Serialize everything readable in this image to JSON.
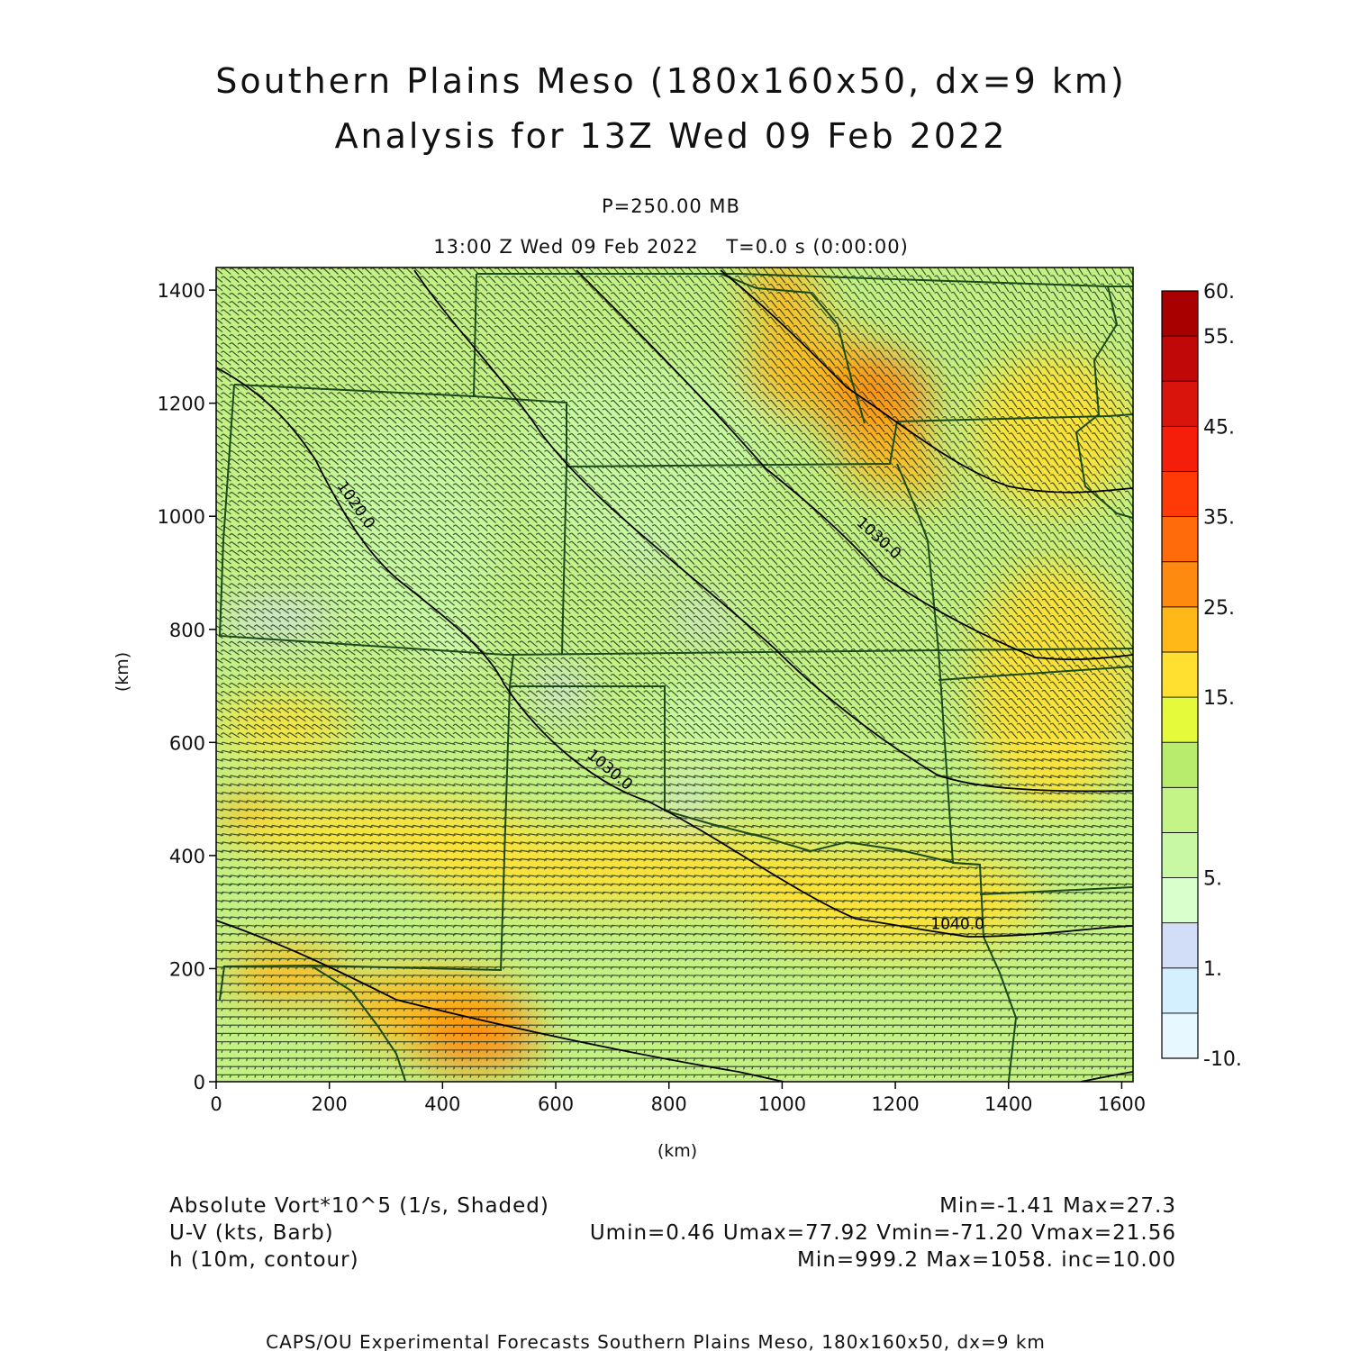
{
  "title": {
    "line1": "Southern Plains Meso (180x160x50, dx=9 km)",
    "line2": "Analysis for 13Z Wed 09 Feb 2022"
  },
  "subtitle": {
    "level": "P=250.00 MB",
    "time": "13:00 Z Wed 09 Feb 2022    T=0.0 s (0:00:00)"
  },
  "chart_data": {
    "type": "heatmap",
    "xlabel": "(km)",
    "ylabel": "(km)",
    "xlim": [
      0,
      1620
    ],
    "ylim": [
      0,
      1440
    ],
    "x_ticks": [
      0,
      200,
      400,
      600,
      800,
      1000,
      1200,
      1400,
      1600
    ],
    "y_ticks": [
      0,
      200,
      400,
      600,
      800,
      1000,
      1200,
      1400
    ],
    "colorbar": {
      "levels": [
        -10,
        -5,
        1,
        3,
        5,
        7.5,
        10,
        12.5,
        15,
        20,
        25,
        30,
        35,
        40,
        45,
        50,
        55,
        60
      ],
      "labels": [
        "-10.",
        "1.",
        "5.",
        "15.",
        "25.",
        "35.",
        "45.",
        "55.",
        "60."
      ],
      "label_levels": [
        -10,
        1,
        5,
        15,
        25,
        35,
        45,
        55,
        60
      ],
      "colors": [
        "#e8f8ff",
        "#d4f0ff",
        "#d2def8",
        "#d8ffcc",
        "#c8f8a4",
        "#c4f488",
        "#b8ec6c",
        "#e6fa3c",
        "#ffe030",
        "#ffb818",
        "#ff8a10",
        "#ff6a0a",
        "#ff3a06",
        "#f41e0a",
        "#d8140c",
        "#c00808",
        "#a80000"
      ]
    },
    "contour_labels": [
      {
        "text": "1020.0",
        "x": 240,
        "y": 1015,
        "angle": 55
      },
      {
        "text": "1030.0",
        "x": 1165,
        "y": 955,
        "angle": 42
      },
      {
        "text": "1030.0",
        "x": 690,
        "y": 545,
        "angle": 40
      },
      {
        "text": "1040.0",
        "x": 1310,
        "y": 270,
        "angle": 0
      }
    ],
    "blobs": [
      {
        "x": 1000,
        "y": 1390,
        "rx": 60,
        "ry": 70,
        "v": 22
      },
      {
        "x": 1050,
        "y": 1260,
        "rx": 110,
        "ry": 80,
        "v": 22
      },
      {
        "x": 1170,
        "y": 1200,
        "rx": 90,
        "ry": 90,
        "v": 26
      },
      {
        "x": 1180,
        "y": 1110,
        "rx": 70,
        "ry": 60,
        "v": 24
      },
      {
        "x": 1250,
        "y": 1070,
        "rx": 40,
        "ry": 40,
        "v": 20
      },
      {
        "x": 60,
        "y": 470,
        "rx": 60,
        "ry": 40,
        "v": 24
      },
      {
        "x": 300,
        "y": 440,
        "rx": 260,
        "ry": 60,
        "v": 17
      },
      {
        "x": 720,
        "y": 380,
        "rx": 380,
        "ry": 70,
        "v": 17
      },
      {
        "x": 1200,
        "y": 320,
        "rx": 260,
        "ry": 90,
        "v": 16
      },
      {
        "x": 1480,
        "y": 700,
        "rx": 140,
        "ry": 220,
        "v": 16
      },
      {
        "x": 1480,
        "y": 1150,
        "rx": 140,
        "ry": 140,
        "v": 16
      },
      {
        "x": 130,
        "y": 190,
        "rx": 110,
        "ry": 50,
        "v": 24
      },
      {
        "x": 380,
        "y": 130,
        "rx": 160,
        "ry": 70,
        "v": 24
      },
      {
        "x": 460,
        "y": 80,
        "rx": 110,
        "ry": 60,
        "v": 26
      },
      {
        "x": 900,
        "y": 580,
        "rx": 120,
        "ry": 25,
        "v": 16
      },
      {
        "x": 120,
        "y": 630,
        "rx": 120,
        "ry": 50,
        "v": 15
      },
      {
        "x": 110,
        "y": 820,
        "rx": 100,
        "ry": 28,
        "v": 2
      },
      {
        "x": 420,
        "y": 770,
        "rx": 50,
        "ry": 30,
        "v": 4
      },
      {
        "x": 610,
        "y": 690,
        "rx": 40,
        "ry": 35,
        "v": 2
      },
      {
        "x": 760,
        "y": 940,
        "rx": 40,
        "ry": 30,
        "v": 2
      },
      {
        "x": 860,
        "y": 820,
        "rx": 50,
        "ry": 25,
        "v": 2
      },
      {
        "x": 830,
        "y": 500,
        "rx": 40,
        "ry": 25,
        "v": 2
      },
      {
        "x": 750,
        "y": 1100,
        "rx": 220,
        "ry": 170,
        "v": 7
      },
      {
        "x": 340,
        "y": 980,
        "rx": 160,
        "ry": 200,
        "v": 7
      },
      {
        "x": 900,
        "y": 640,
        "rx": 130,
        "ry": 90,
        "v": 7
      }
    ]
  },
  "legend": {
    "field1": "Absolute Vort*10^5 (1/s, Shaded)",
    "field1_stats": "Min=-1.41 Max=27.3",
    "field2": "U-V (kts, Barb)",
    "field2_stats": "Umin=0.46 Umax=77.92 Vmin=-71.20 Vmax=21.56",
    "field3": "h (10m, contour)",
    "field3_stats": "Min=999.2 Max=1058. inc=10.00"
  },
  "footer": "CAPS/OU Experimental Forecasts  Southern Plains Meso, 180x160x50, dx=9 km"
}
